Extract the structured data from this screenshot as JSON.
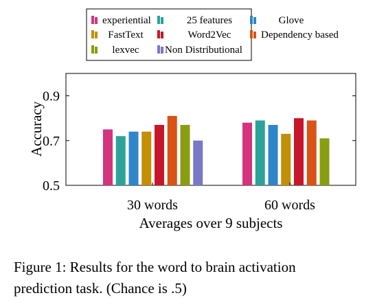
{
  "chart_data": {
    "type": "bar",
    "categories": [
      "30 words",
      "60 words"
    ],
    "xlabel": "Averages over 9 subjects",
    "ylabel": "Accuracy",
    "ylim": [
      0.5,
      1.0
    ],
    "yticks": [
      0.5,
      0.7,
      0.9
    ],
    "ytick_labels": [
      "0.5",
      "0.7",
      "0.9"
    ],
    "legend_position": "top",
    "series": [
      {
        "name": "experiential",
        "color": "#d6337f",
        "values": [
          0.75,
          0.78
        ]
      },
      {
        "name": "25 features",
        "color": "#2ba39a",
        "values": [
          0.72,
          0.79
        ]
      },
      {
        "name": "Glove",
        "color": "#2f86c8",
        "values": [
          0.74,
          0.77
        ]
      },
      {
        "name": "FastText",
        "color": "#c38f06",
        "values": [
          0.74,
          0.73
        ]
      },
      {
        "name": "Word2Vec",
        "color": "#c7162c",
        "values": [
          0.77,
          0.8
        ]
      },
      {
        "name": "Dependency based",
        "color": "#d95316",
        "values": [
          0.81,
          0.79
        ]
      },
      {
        "name": "lexvec",
        "color": "#889e10",
        "values": [
          0.77,
          0.71
        ]
      },
      {
        "name": "Non Distributional",
        "color": "#7878c6",
        "values": [
          0.7,
          null
        ]
      }
    ]
  },
  "caption": {
    "line1": "Figure 1:  Results for the word to brain activation",
    "line2": "prediction task. (Chance is .5)"
  }
}
